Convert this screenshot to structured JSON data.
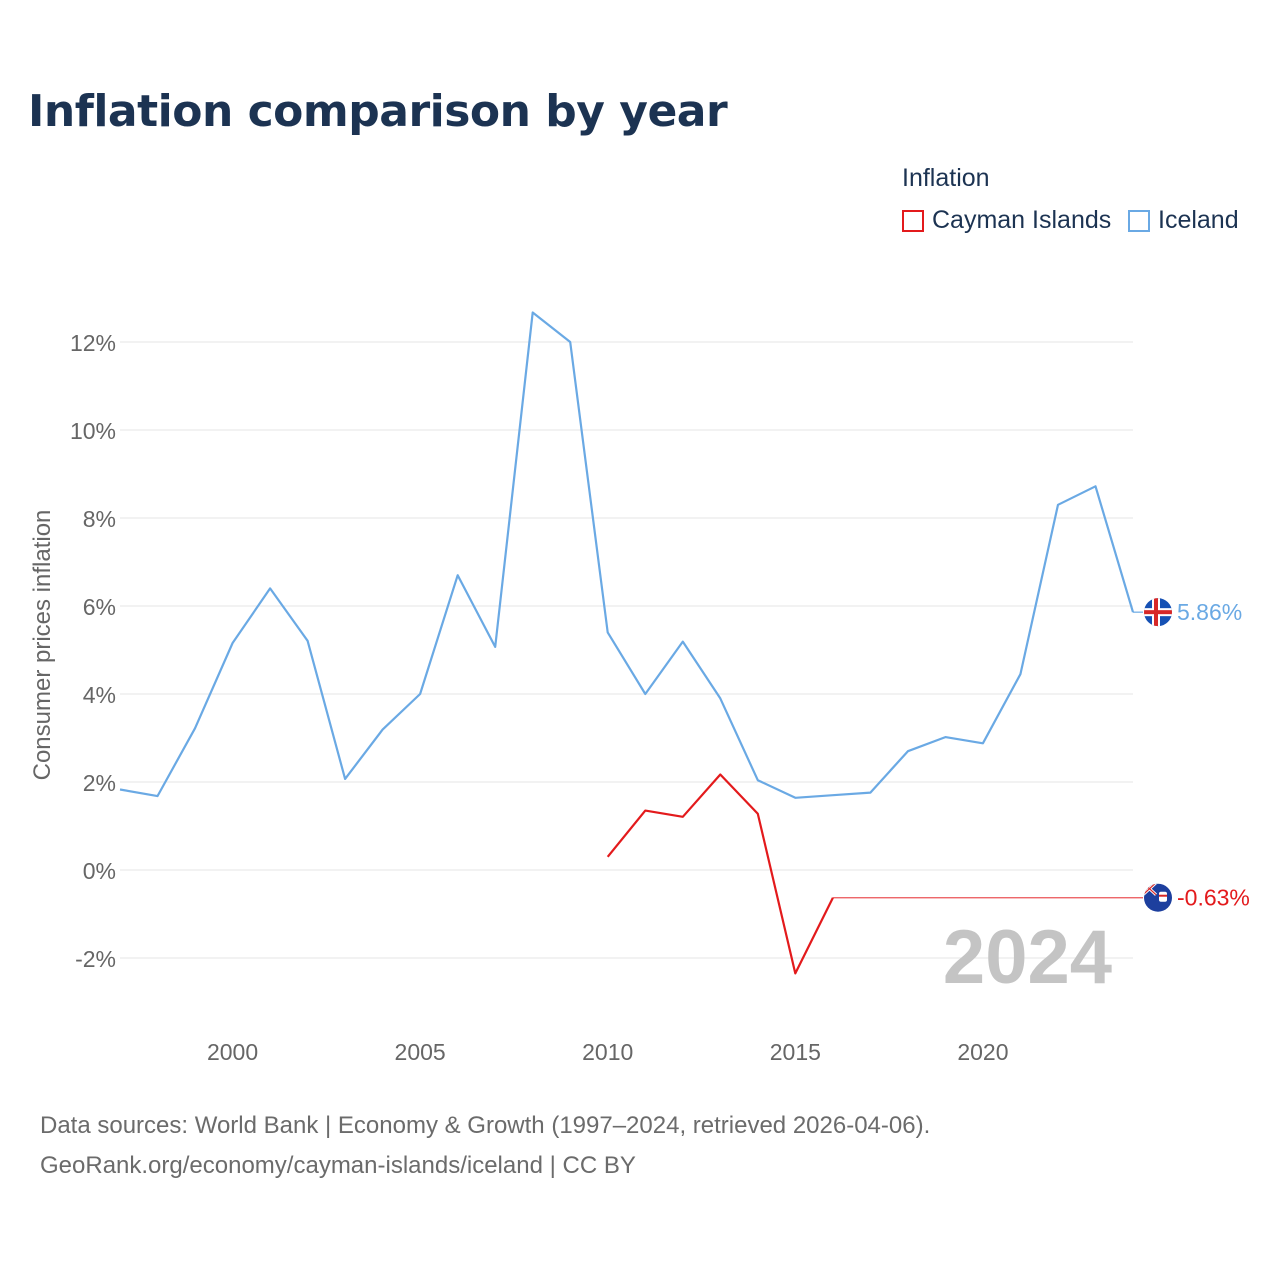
{
  "title": "Inflation comparison by year",
  "legend": {
    "title": "Inflation",
    "items": [
      {
        "label": "Cayman Islands",
        "color": "#e31a1c"
      },
      {
        "label": "Iceland",
        "color": "#6aa9e4"
      }
    ]
  },
  "source": {
    "line1": "Data sources: World Bank | Economy & Growth (1997–2024, retrieved 2026-04-06).",
    "line2": "GeoRank.org/economy/cayman-islands/iceland | CC BY"
  },
  "chart_data": {
    "type": "line",
    "title": "Inflation comparison by year",
    "ylabel": "Consumer prices inflation",
    "xlabel": "",
    "xlim": [
      1997,
      2024
    ],
    "ylim": [
      -3,
      12.8
    ],
    "x_ticks": [
      2000,
      2005,
      2010,
      2015,
      2020
    ],
    "y_ticks": [
      -2,
      0,
      2,
      4,
      6,
      8,
      10,
      12
    ],
    "y_tick_suffix": "%",
    "year_watermark": "2024",
    "series": [
      {
        "name": "Iceland",
        "color": "#6aa9e4",
        "end_label": "5.86%",
        "flag": "iceland-flag",
        "x": [
          1997,
          1998,
          1999,
          2000,
          2001,
          2002,
          2003,
          2004,
          2005,
          2006,
          2007,
          2008,
          2009,
          2010,
          2011,
          2012,
          2013,
          2014,
          2015,
          2016,
          2017,
          2018,
          2019,
          2020,
          2021,
          2022,
          2023,
          2024
        ],
        "values": [
          1.83,
          1.68,
          3.22,
          5.16,
          6.4,
          5.21,
          2.07,
          3.19,
          4.0,
          6.7,
          5.07,
          12.67,
          12.0,
          5.4,
          4.0,
          5.19,
          3.9,
          2.04,
          1.64,
          1.7,
          1.76,
          2.7,
          3.02,
          2.88,
          4.45,
          8.3,
          8.72,
          5.86
        ]
      },
      {
        "name": "Cayman Islands",
        "color": "#e31a1c",
        "end_label": "-0.63%",
        "flag": "cayman-islands-flag",
        "x": [
          2010,
          2011,
          2012,
          2013,
          2014,
          2015,
          2016
        ],
        "values": [
          0.3,
          1.35,
          1.21,
          2.17,
          1.28,
          -2.35,
          -0.63
        ],
        "hold_to": 2024
      }
    ]
  }
}
